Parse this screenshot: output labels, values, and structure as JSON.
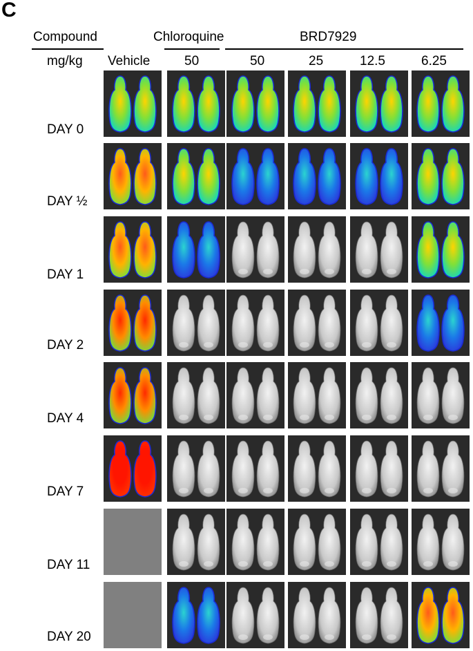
{
  "panel_label": "C",
  "header": {
    "compound_label": "Compound",
    "dose_label": "mg/kg",
    "vehicle_label": "Vehicle",
    "chloroquine_label": "Chloroquine",
    "brd_label": "BRD7929",
    "doses": [
      "50",
      "50",
      "25",
      "12.5",
      "6.25"
    ]
  },
  "days": [
    "DAY 0",
    "DAY ½",
    "DAY 1",
    "DAY 2",
    "DAY 4",
    "DAY 7",
    "DAY 11",
    "DAY 20"
  ],
  "grid": [
    [
      "green",
      "green",
      "green",
      "green",
      "green",
      "green"
    ],
    [
      "warm",
      "green",
      "blue",
      "blue",
      "blue",
      "green"
    ],
    [
      "warm",
      "blue",
      "grey",
      "grey",
      "grey",
      "green"
    ],
    [
      "hot",
      "grey",
      "grey",
      "grey",
      "grey",
      "blue"
    ],
    [
      "hot",
      "grey",
      "grey",
      "grey",
      "grey",
      "grey"
    ],
    [
      "red",
      "grey",
      "grey",
      "grey",
      "grey",
      "grey"
    ],
    [
      "blank",
      "grey",
      "grey",
      "grey",
      "grey",
      "grey"
    ],
    [
      "blank",
      "blue",
      "grey",
      "grey",
      "grey",
      "warm"
    ]
  ]
}
